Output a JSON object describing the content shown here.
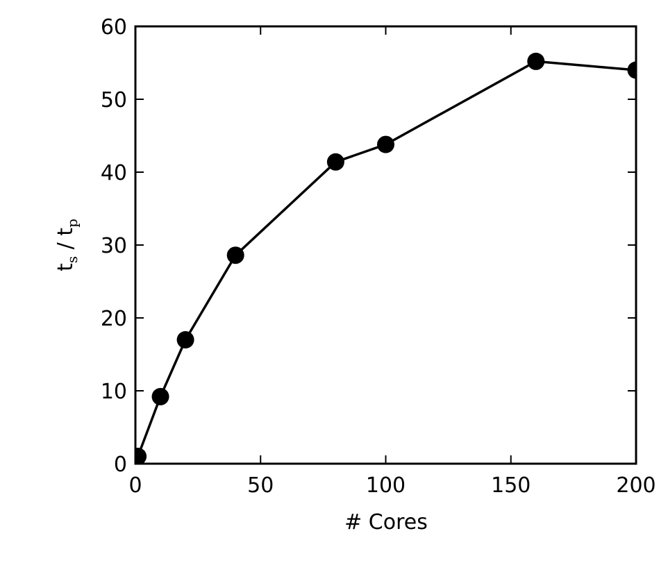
{
  "chart_data": {
    "type": "line",
    "title": "",
    "xlabel": "# Cores",
    "ylabel": {
      "base1": "t",
      "sub1": "s",
      "sep": " / ",
      "base2": "t",
      "sub2": "p"
    },
    "xlim": [
      0,
      200
    ],
    "ylim": [
      0,
      60
    ],
    "xticks": [
      0,
      50,
      100,
      150,
      200
    ],
    "yticks": [
      0,
      10,
      20,
      30,
      40,
      50,
      60
    ],
    "xtick_labels": [
      "0",
      "50",
      "100",
      "150",
      "200"
    ],
    "ytick_labels": [
      "0",
      "10",
      "20",
      "30",
      "40",
      "50",
      "60"
    ],
    "grid": false,
    "legend": "none",
    "line_color": "#000000",
    "marker_color": "#000000",
    "series": [
      {
        "x": [
          1,
          10,
          20,
          40,
          80,
          100,
          160,
          200
        ],
        "y": [
          1.0,
          9.2,
          17.0,
          28.6,
          41.4,
          43.8,
          55.2,
          54.0
        ]
      }
    ]
  }
}
